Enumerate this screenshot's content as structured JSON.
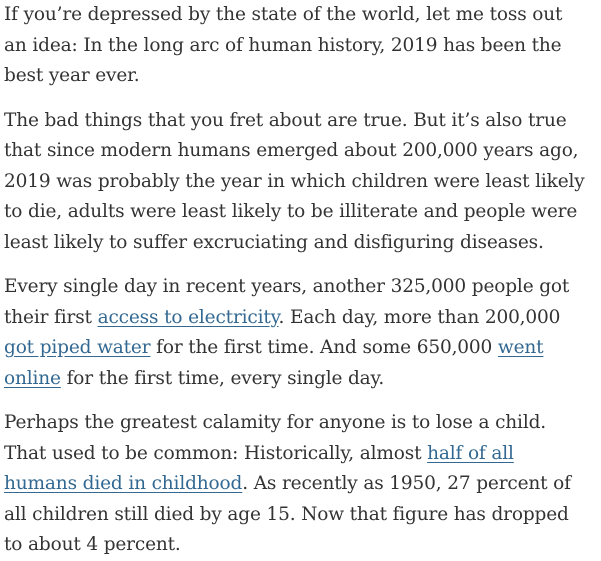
{
  "article": {
    "paragraphs": [
      {
        "segments": [
          {
            "text": "If you’re depressed by the state of the world, let me toss out an idea: In the long arc of human history, 2019 has been the best year ever."
          }
        ]
      },
      {
        "segments": [
          {
            "text": "The bad things that you fret about are true. But it’s also true that since modern humans emerged about 200,000 years ago, 2019 was probably the year in which children were least likely to die, adults were least likely to be illiterate and people were least likely to suffer excruciating and disfiguring diseases."
          }
        ]
      },
      {
        "segments": [
          {
            "text": "Every single day in recent years, another 325,000 people got their first "
          },
          {
            "text": "access to electricity",
            "link": true
          },
          {
            "text": ". Each day, more than 200,000 "
          },
          {
            "text": "got piped water",
            "link": true
          },
          {
            "text": " for the first time. And some 650,000 "
          },
          {
            "text": "went online",
            "link": true
          },
          {
            "text": " for the first time, every single day."
          }
        ]
      },
      {
        "segments": [
          {
            "text": "Perhaps the greatest calamity for anyone is to lose a child. That used to be common: Historically, almost "
          },
          {
            "text": "half of all humans died in childhood",
            "link": true
          },
          {
            "text": ". As recently as 1950, 27 percent of all children still died by age 15. Now that figure has dropped to about 4 percent."
          }
        ]
      }
    ]
  },
  "colors": {
    "body_text": "#333333",
    "link": "#326891",
    "background": "#ffffff"
  }
}
